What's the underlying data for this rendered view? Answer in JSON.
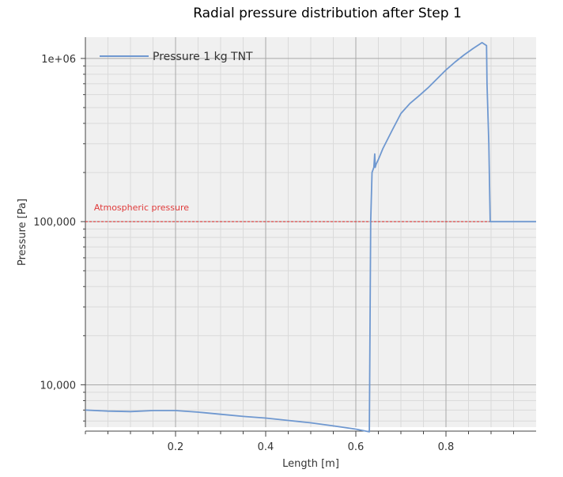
{
  "chart_data": {
    "type": "line",
    "title": "Radial pressure distribution after Step 1",
    "xlabel": "Length [m]",
    "ylabel": "Pressure [Pa]",
    "y_scale": "log",
    "xlim": [
      0,
      1.0
    ],
    "ylim": [
      5500,
      1350000
    ],
    "x_ticks": [
      0.2,
      0.4,
      0.6,
      0.8
    ],
    "x_tick_labels": [
      "0.2",
      "0.4",
      "0.6",
      "0.8"
    ],
    "y_ticks": [
      10000,
      100000,
      1000000
    ],
    "y_tick_labels": [
      "10,000",
      "100,000",
      "1e+06"
    ],
    "grid": true,
    "legend_position": "top-left",
    "series": [
      {
        "name": "Pressure 1 kg TNT",
        "color": "#6f98d0",
        "x": [
          0.0,
          0.05,
          0.1,
          0.15,
          0.2,
          0.25,
          0.3,
          0.35,
          0.4,
          0.45,
          0.5,
          0.55,
          0.6,
          0.63,
          0.633,
          0.636,
          0.64,
          0.642,
          0.643,
          0.645,
          0.65,
          0.66,
          0.68,
          0.7,
          0.72,
          0.74,
          0.76,
          0.78,
          0.8,
          0.82,
          0.84,
          0.86,
          0.88,
          0.89,
          0.891,
          0.895,
          0.898,
          0.9,
          0.95,
          1.0
        ],
        "y": [
          7000,
          6900,
          6850,
          6950,
          6950,
          6800,
          6600,
          6400,
          6250,
          6050,
          5850,
          5600,
          5350,
          5150,
          100000,
          200000,
          215000,
          260000,
          215000,
          225000,
          240000,
          280000,
          360000,
          460000,
          530000,
          590000,
          660000,
          750000,
          850000,
          950000,
          1050000,
          1150000,
          1250000,
          1200000,
          700000,
          300000,
          100000,
          100000,
          100000,
          100000
        ]
      },
      {
        "name": "Atmospheric pressure",
        "color": "#e03b3b",
        "x": [
          0.0,
          1.0
        ],
        "y": [
          100000,
          100000
        ]
      }
    ],
    "annotations": [
      {
        "text": "Atmospheric pressure",
        "x": 0.005,
        "y": 100000
      }
    ]
  }
}
